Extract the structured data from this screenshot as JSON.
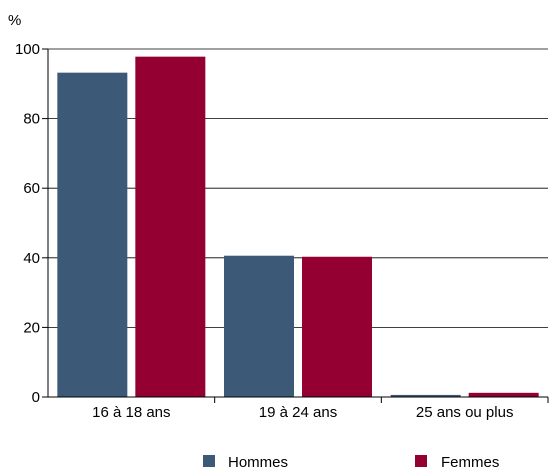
{
  "chart_data": {
    "type": "bar",
    "title": "",
    "xlabel": "",
    "ylabel": "%",
    "ylim": [
      0,
      100
    ],
    "yticks": [
      "0",
      "20",
      "40",
      "60",
      "80",
      "100"
    ],
    "categories": [
      "16 à 18 ans",
      "19 à 24 ans",
      "25 ans ou plus"
    ],
    "series": [
      {
        "name": "Hommes",
        "color": "#3c5a78",
        "values": [
          93.2,
          40.6,
          0.6
        ]
      },
      {
        "name": "Femmes",
        "color": "#930031",
        "values": [
          97.8,
          40.3,
          1.2
        ]
      }
    ],
    "grid": true,
    "legend_position": "bottom"
  }
}
